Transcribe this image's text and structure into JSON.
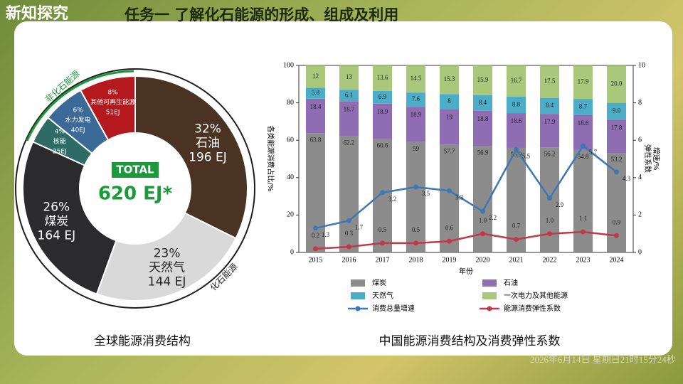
{
  "header": {
    "tag": "新知探究",
    "title": "任务一 了解化石能源的形成、组成及利用"
  },
  "timestamp": "2026年6月14日 星期日21时15分24秒",
  "chart_data": [
    {
      "type": "pie",
      "caption": "全球能源消费结构",
      "center_label": "TOTAL",
      "center_value": "620 EJ*",
      "group_labels": [
        "非化石能源",
        "化石能源"
      ],
      "categories": [
        "石油",
        "天然气",
        "煤炭",
        "核能",
        "水力发电",
        "其他可再生能源"
      ],
      "values": [
        32,
        23,
        26,
        4,
        6,
        8
      ],
      "value_labels": [
        "32%",
        "23%",
        "26%",
        "4%",
        "6%",
        "8%"
      ],
      "amount_labels": [
        "196 EJ",
        "144 EJ",
        "164 EJ",
        "25EJ",
        "40EJ",
        "51EJ"
      ],
      "colors": [
        "#4a3322",
        "#d9d9d9",
        "#2b2b2d",
        "#2e6b66",
        "#3c6a96",
        "#b3191d"
      ]
    },
    {
      "type": "bar",
      "caption": "中国能源消费结构及消费弹性系数",
      "xlabel": "年份",
      "ylabel": "各类能源消费占比/%",
      "y2label": [
        "增速/%",
        "弹性系数"
      ],
      "categories": [
        "2015",
        "2016",
        "2017",
        "2018",
        "2019",
        "2020",
        "2021",
        "2022",
        "2023",
        "2024"
      ],
      "ylim": [
        0,
        100
      ],
      "yticks": [
        0,
        20,
        40,
        60,
        80,
        100
      ],
      "y2lim": [
        0,
        10
      ],
      "y2ticks": [
        0,
        2,
        4,
        6,
        8,
        10
      ],
      "series": [
        {
          "name": "煤炭",
          "color": "#8c8c8c",
          "stack": true,
          "values": [
            63.8,
            62.2,
            60.6,
            59,
            57.7,
            56.9,
            55.9,
            56.2,
            54.8,
            53.2
          ],
          "value_labels": [
            "63.8",
            "62.2",
            "60.6",
            "59",
            "57.7",
            "56.9",
            "55.9",
            "56.2",
            "54.8",
            "53.2"
          ]
        },
        {
          "name": "石油",
          "color": "#8f6db2",
          "stack": true,
          "values": [
            18.4,
            18.7,
            18.9,
            18.9,
            19,
            18.8,
            18.6,
            17.9,
            18.6,
            17.8
          ],
          "value_labels": [
            "18.4",
            "18.7",
            "18.9",
            "18.9",
            "19",
            "18.8",
            "18.6",
            "17.9",
            "18.6",
            "17.8"
          ]
        },
        {
          "name": "天然气",
          "color": "#4badc7",
          "stack": true,
          "values": [
            5.8,
            6.1,
            6.9,
            7.6,
            8,
            8.4,
            8.8,
            8.4,
            8.7,
            9
          ],
          "value_labels": [
            "5.8",
            "6.1",
            "6.9",
            "7.6",
            "8",
            "8.4",
            "8.8",
            "8.4",
            "8.7",
            "9.0"
          ]
        },
        {
          "name": "一次电力及其他能源",
          "color": "#a9c87b",
          "stack": true,
          "values": [
            12,
            13,
            13.6,
            14.5,
            15.3,
            15.9,
            16.7,
            17.5,
            17.9,
            20
          ],
          "value_labels": [
            "12",
            "13",
            "13.6",
            "14.5",
            "15.3",
            "15.9",
            "16.7",
            "17.5",
            "17.9",
            "20.0"
          ]
        },
        {
          "name": "消费总量增速",
          "color": "#3d78b5",
          "axis": "y2",
          "line": true,
          "values": [
            1.3,
            1.7,
            3.2,
            3.5,
            3.3,
            2.2,
            5.5,
            2.9,
            5.7,
            4.3
          ],
          "value_labels": [
            "1.3",
            "1.7",
            "3.2",
            "3.5",
            "3.3",
            "2.2",
            "5.5",
            "2.9",
            "5.7",
            "4.3"
          ]
        },
        {
          "name": "能源消费弹性系数",
          "color": "#c0394b",
          "axis": "y2",
          "line": true,
          "values": [
            0.2,
            0.3,
            0.5,
            0.5,
            0.6,
            1,
            0.7,
            1,
            1.1,
            0.9
          ],
          "value_labels": [
            "0.2",
            "0.3",
            "0.5",
            "0.5",
            "0.6",
            "1.0",
            "0.7",
            "1.0",
            "1.1",
            "0.9"
          ]
        }
      ]
    }
  ]
}
